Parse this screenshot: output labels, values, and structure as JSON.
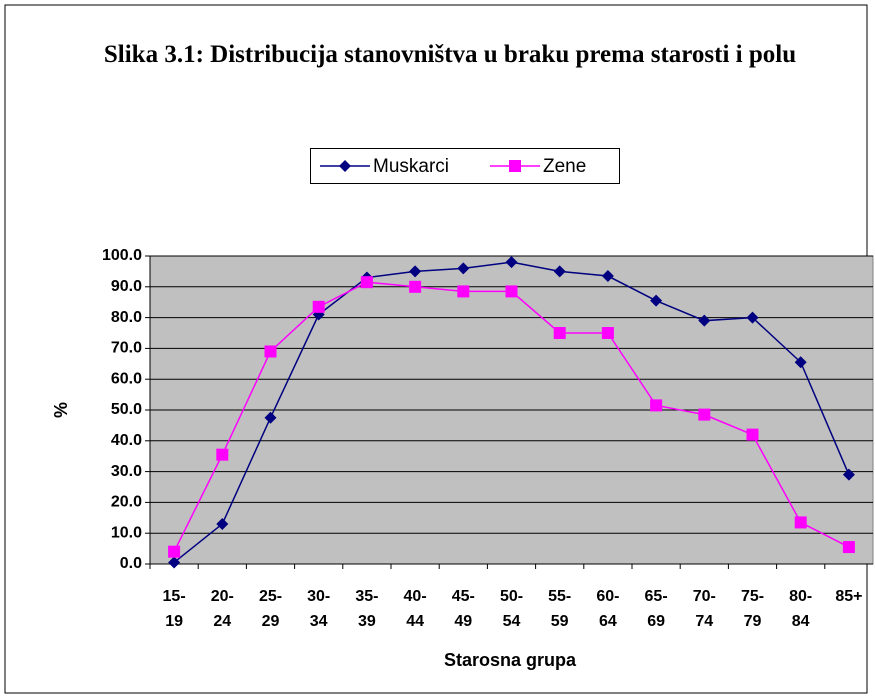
{
  "chart_data": {
    "type": "line",
    "title": "Slika 3.1: Distribucija stanovništva u braku prema starosti i polu",
    "xlabel": "Starosna grupa",
    "ylabel": "%",
    "categories": [
      "15- 19",
      "20- 24",
      "25- 29",
      "30- 34",
      "35- 39",
      "40- 44",
      "45- 49",
      "50- 54",
      "55- 59",
      "60- 64",
      "65- 69",
      "70- 74",
      "75- 79",
      "80- 84",
      "85+"
    ],
    "series": [
      {
        "name": "Muskarci",
        "color": "#000080",
        "marker": "diamond",
        "values": [
          0.5,
          13,
          47.5,
          81,
          93,
          95,
          96,
          98,
          95,
          93.5,
          85.5,
          79,
          80,
          65.5,
          29
        ]
      },
      {
        "name": "Zene",
        "color": "#ff00ff",
        "marker": "square",
        "values": [
          4,
          35.5,
          69,
          83.5,
          91.5,
          90,
          88.5,
          88.5,
          75,
          75,
          51.5,
          48.5,
          42,
          13.5,
          5.5
        ]
      }
    ],
    "ylim": [
      0,
      100
    ],
    "yticks": [
      {
        "value": 0,
        "label": "0.0"
      },
      {
        "value": 10,
        "label": "10.0"
      },
      {
        "value": 20,
        "label": "20.0"
      },
      {
        "value": 30,
        "label": "30.0"
      },
      {
        "value": 40,
        "label": "40.0"
      },
      {
        "value": 50,
        "label": "50.0"
      },
      {
        "value": 60,
        "label": "60.0"
      },
      {
        "value": 70,
        "label": "70.0"
      },
      {
        "value": 80,
        "label": "80.0"
      },
      {
        "value": 90,
        "label": "90.0"
      },
      {
        "value": 100,
        "label": "100.0"
      }
    ],
    "grid": true,
    "legend": "top"
  }
}
